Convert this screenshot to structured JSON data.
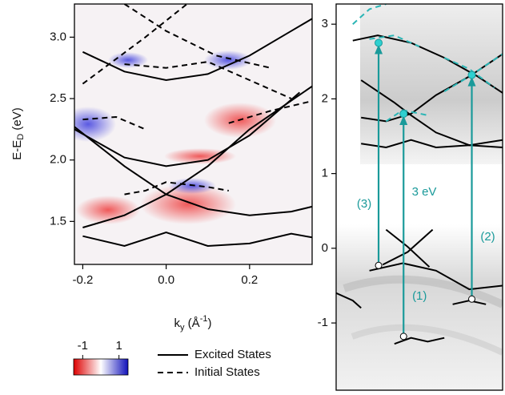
{
  "chart_data": [
    {
      "type": "line",
      "y_label": [
        "E-E",
        "D",
        " (eV)"
      ],
      "x_label": [
        "k",
        "y",
        " (Å",
        "-1",
        ")"
      ],
      "xlim": [
        -0.22,
        0.35
      ],
      "ylim": [
        1.15,
        3.27
      ],
      "xticks": [
        -0.2,
        {
          "value": 0,
          "label": "0.0"
        },
        0.2
      ],
      "yticks": [
        1.5,
        {
          "value": 2,
          "label": "2.0"
        },
        2.5,
        {
          "value": 3,
          "label": "3.0"
        }
      ],
      "legend": [
        {
          "label": "Excited States",
          "style": "solid"
        },
        {
          "label": "Initial States",
          "style": "dashed"
        }
      ],
      "colorbar": {
        "lim": [
          -1.5,
          1.5
        ],
        "ticks": [
          -1,
          1
        ]
      },
      "series": [
        {
          "style": "solid",
          "color": "#000000",
          "x": [
            -0.2,
            -0.1,
            0,
            0.1,
            0.2,
            0.3,
            0.35
          ],
          "values": [
            2.88,
            2.72,
            2.65,
            2.7,
            2.85,
            3.05,
            3.15
          ]
        },
        {
          "style": "solid",
          "color": "#000000",
          "x": [
            -0.22,
            -0.1,
            0,
            0.1,
            0.2,
            0.32
          ],
          "values": [
            2.25,
            2.02,
            1.95,
            2.0,
            2.2,
            2.55
          ]
        },
        {
          "style": "solid",
          "color": "#000000",
          "x": [
            -0.22,
            -0.1,
            0,
            0.1,
            0.2,
            0.3,
            0.35
          ],
          "values": [
            2.27,
            1.95,
            1.72,
            1.6,
            1.55,
            1.58,
            1.62
          ]
        },
        {
          "style": "solid",
          "color": "#000000",
          "x": [
            -0.2,
            -0.1,
            0,
            0.1,
            0.2,
            0.35
          ],
          "values": [
            1.45,
            1.55,
            1.72,
            1.95,
            2.25,
            2.6
          ]
        },
        {
          "style": "solid",
          "color": "#000000",
          "x": [
            -0.2,
            -0.1,
            0,
            0.1,
            0.2,
            0.3,
            0.35
          ],
          "values": [
            1.38,
            1.3,
            1.41,
            1.3,
            1.32,
            1.4,
            1.37
          ]
        },
        {
          "style": "dashed",
          "color": "#000000",
          "x": [
            -0.1,
            0,
            0.12,
            0.25
          ],
          "values": [
            3.27,
            3.05,
            2.85,
            2.75
          ]
        },
        {
          "style": "dashed",
          "color": "#000000",
          "x": [
            -0.2,
            -0.05,
            0.05
          ],
          "values": [
            2.62,
            3.0,
            3.27
          ]
        },
        {
          "style": "dashed",
          "color": "#000000",
          "x": [
            -0.1,
            0,
            0.1,
            0.2,
            0.3
          ],
          "values": [
            2.78,
            2.75,
            2.8,
            2.65,
            2.5
          ]
        },
        {
          "style": "dashed",
          "color": "#000000",
          "x": [
            -0.2,
            -0.12,
            -0.05
          ],
          "values": [
            2.33,
            2.35,
            2.25
          ]
        },
        {
          "style": "dashed",
          "color": "#000000",
          "x": [
            0.15,
            0.25,
            0.35
          ],
          "values": [
            2.3,
            2.4,
            2.48
          ]
        },
        {
          "style": "dashed",
          "color": "#000000",
          "x": [
            -0.1,
            -0.05,
            0,
            0.05,
            0.1,
            0.15
          ],
          "values": [
            1.72,
            1.75,
            1.82,
            1.8,
            1.78,
            1.75
          ]
        }
      ]
    },
    {
      "type": "line",
      "xlim": [
        0,
        1
      ],
      "ylim": [
        -1.9,
        3.27
      ],
      "yticks": [
        -1,
        0,
        1,
        2,
        3
      ],
      "annotation": "3 eV",
      "arrow_color": "#1a9a9a",
      "arrows": [
        {
          "label": "(3)",
          "x": 0.255,
          "y": [
            -0.23,
            2.75
          ]
        },
        {
          "label": "(1)",
          "x": 0.405,
          "y": [
            -1.18,
            1.8
          ]
        },
        {
          "label": "(2)",
          "x": 0.815,
          "y": [
            -0.68,
            2.32
          ]
        }
      ],
      "series": [
        {
          "style": "solid",
          "color": "#000000",
          "x": [
            0.1,
            0.25,
            0.45,
            0.65,
            0.85,
            1
          ],
          "values": [
            2.78,
            2.85,
            2.75,
            2.55,
            2.3,
            2.08
          ]
        },
        {
          "style": "solid",
          "color": "#000000",
          "x": [
            0.15,
            0.35,
            0.45,
            0.6,
            0.8,
            1
          ],
          "values": [
            2.25,
            1.95,
            1.78,
            1.55,
            1.38,
            1.45
          ]
        },
        {
          "style": "solid",
          "color": "#000000",
          "x": [
            0.15,
            0.3,
            0.45,
            0.6,
            0.8,
            1
          ],
          "values": [
            1.75,
            1.7,
            1.8,
            2.05,
            2.3,
            2.6
          ]
        },
        {
          "style": "solid",
          "color": "#000000",
          "x": [
            0.15,
            0.3,
            0.45,
            0.6,
            0.8,
            1
          ],
          "values": [
            1.4,
            1.35,
            1.45,
            1.35,
            1.38,
            1.35
          ]
        },
        {
          "style": "solid",
          "color": "#000000",
          "x": [
            0.28,
            0.43,
            0.58
          ],
          "values": [
            -0.22,
            -0.05,
            0.25
          ]
        },
        {
          "style": "solid",
          "color": "#000000",
          "x": [
            0.3,
            0.43,
            0.56
          ],
          "values": [
            0.25,
            0.02,
            -0.25
          ]
        },
        {
          "style": "solid",
          "color": "#000000",
          "x": [
            0.2,
            0.4,
            0.6,
            0.8,
            1
          ],
          "values": [
            -0.3,
            -0.2,
            -0.3,
            -0.55,
            -0.5
          ]
        },
        {
          "style": "solid",
          "color": "#000000",
          "x": [
            0,
            0.1,
            0.15
          ],
          "values": [
            -0.6,
            -0.7,
            -0.8
          ]
        },
        {
          "style": "solid",
          "color": "#000000",
          "x": [
            0.7,
            0.8,
            0.9
          ],
          "values": [
            -0.75,
            -0.7,
            -0.75
          ]
        },
        {
          "style": "solid",
          "color": "#000000",
          "x": [
            0.35,
            0.45,
            0.55,
            0.65
          ],
          "values": [
            -1.28,
            -1.2,
            -1.25,
            -1.2
          ]
        },
        {
          "style": "dashed",
          "color": "#2ab5b5",
          "x": [
            0.1,
            0.2,
            0.3
          ],
          "values": [
            3.0,
            3.2,
            3.27
          ]
        },
        {
          "style": "dashed",
          "color": "#2ab5b5",
          "x": [
            0.2,
            0.35,
            0.5
          ],
          "values": [
            2.8,
            2.85,
            2.7
          ]
        },
        {
          "style": "dashed",
          "color": "#2ab5b5",
          "x": [
            0.65,
            0.8,
            0.95
          ],
          "values": [
            2.55,
            2.4,
            2.15
          ]
        },
        {
          "style": "dashed",
          "color": "#2ab5b5",
          "x": [
            0.65,
            0.8,
            1
          ],
          "values": [
            2.1,
            2.3,
            2.6
          ]
        },
        {
          "style": "dashed",
          "color": "#2ab5b5",
          "x": [
            0.3,
            0.4,
            0.55
          ],
          "values": [
            1.7,
            1.85,
            1.78
          ]
        }
      ]
    }
  ]
}
